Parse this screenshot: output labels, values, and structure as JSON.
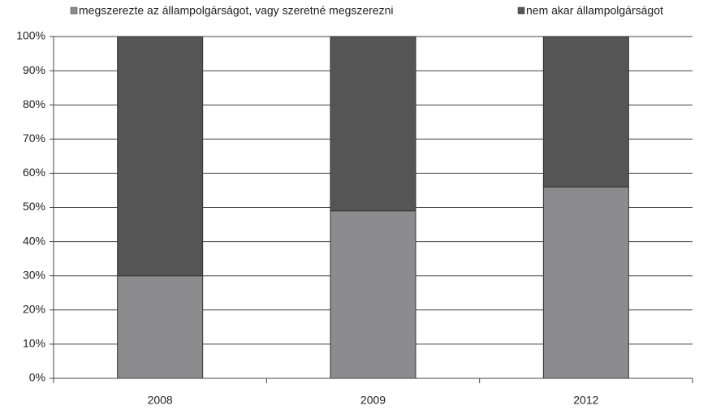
{
  "chart_data": {
    "type": "stacked_bar",
    "categories": [
      "2008",
      "2009",
      "2012"
    ],
    "series": [
      {
        "name": "megszerezte az állampolgárságot, vagy szeretné megszerezni",
        "color": "#8c8c8e",
        "values": [
          30,
          49,
          56
        ]
      },
      {
        "name": "nem akar állampolgárságot",
        "color": "#555555",
        "values": [
          70,
          51,
          44
        ]
      }
    ],
    "ylim": [
      0,
      100
    ],
    "yticks": [
      {
        "value": 0,
        "label": "0%"
      },
      {
        "value": 10,
        "label": "10%"
      },
      {
        "value": 20,
        "label": "20%"
      },
      {
        "value": 30,
        "label": "30%"
      },
      {
        "value": 40,
        "label": "40%"
      },
      {
        "value": 50,
        "label": "50%"
      },
      {
        "value": 60,
        "label": "60%"
      },
      {
        "value": 70,
        "label": "70%"
      },
      {
        "value": 80,
        "label": "80%"
      },
      {
        "value": 90,
        "label": "90%"
      },
      {
        "value": 100,
        "label": "100%"
      }
    ],
    "grid": true,
    "legend": "top"
  }
}
